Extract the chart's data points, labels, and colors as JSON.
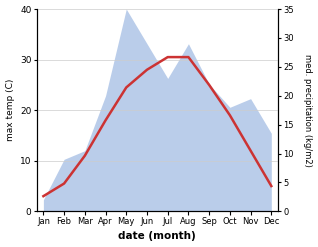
{
  "months": [
    "Jan",
    "Feb",
    "Mar",
    "Apr",
    "May",
    "Jun",
    "Jul",
    "Aug",
    "Sep",
    "Oct",
    "Nov",
    "Dec"
  ],
  "max_temp": [
    3.0,
    5.5,
    11.0,
    18.0,
    24.5,
    28.0,
    30.5,
    30.5,
    25.0,
    19.0,
    12.0,
    5.0
  ],
  "precipitation": [
    2.0,
    9.0,
    10.5,
    20.0,
    35.0,
    29.0,
    23.0,
    29.0,
    22.0,
    18.0,
    19.5,
    13.5
  ],
  "temp_ylim": [
    0,
    40
  ],
  "precip_ylim": [
    0,
    35
  ],
  "temp_color": "#cc3333",
  "precip_fill_color": "#b3c8e8",
  "precip_fill_alpha": 0.9,
  "xlabel": "date (month)",
  "ylabel_left": "max temp (C)",
  "ylabel_right": "med. precipitation (kg/m2)",
  "bg_color": "#ffffff",
  "left_ticks": [
    0,
    10,
    20,
    30,
    40
  ],
  "right_ticks": [
    0,
    5,
    10,
    15,
    20,
    25,
    30,
    35
  ]
}
